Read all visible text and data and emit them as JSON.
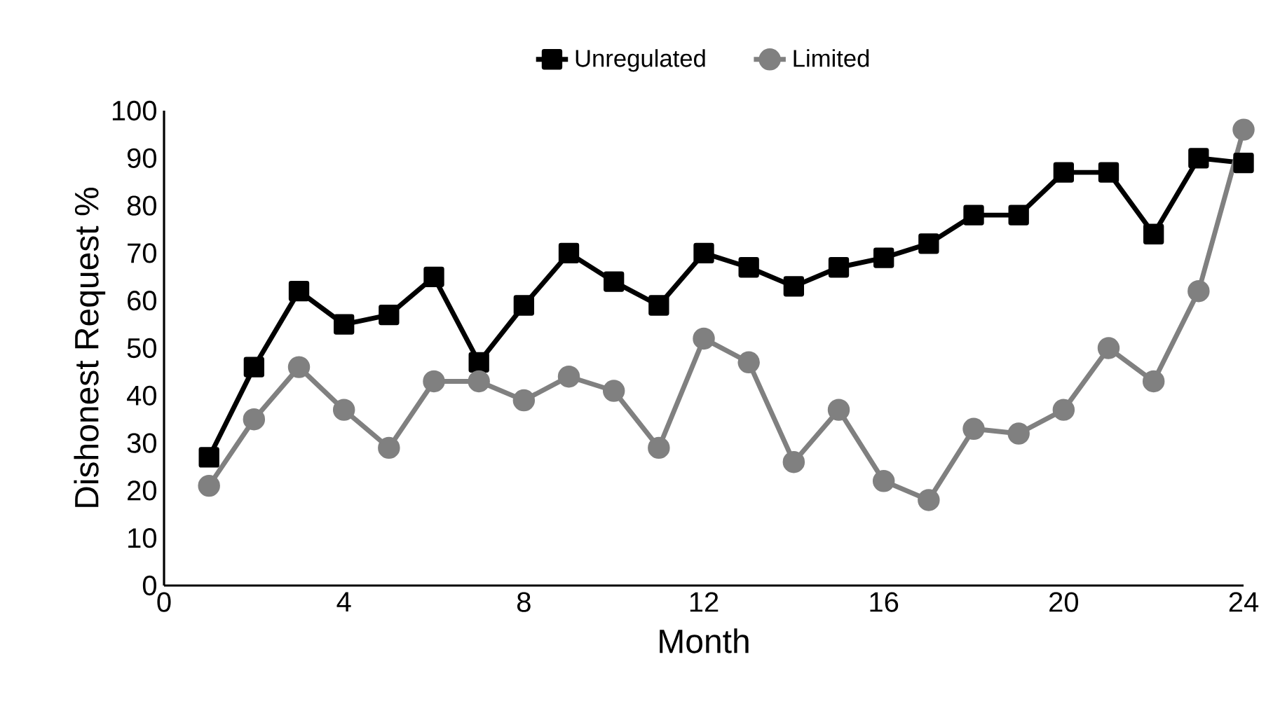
{
  "chart_data": {
    "type": "line",
    "xlabel": "Month",
    "ylabel": "Dishonest Request %",
    "x": [
      1,
      2,
      3,
      4,
      5,
      6,
      7,
      8,
      9,
      10,
      11,
      12,
      13,
      14,
      15,
      16,
      17,
      18,
      19,
      20,
      21,
      22,
      23,
      24
    ],
    "xlim": [
      0,
      24
    ],
    "xticks": [
      0,
      4,
      8,
      12,
      16,
      20,
      24
    ],
    "ylim": [
      0,
      100
    ],
    "yticks": [
      0,
      10,
      20,
      30,
      40,
      50,
      60,
      70,
      80,
      90,
      100
    ],
    "grid": false,
    "legend": "top",
    "line_style": "solid",
    "series": [
      {
        "name": "Unregulated",
        "color": "#000000",
        "marker": "square",
        "values": [
          27,
          46,
          62,
          55,
          57,
          65,
          47,
          59,
          70,
          64,
          59,
          70,
          67,
          63,
          67,
          69,
          72,
          78,
          78,
          87,
          87,
          74,
          90,
          89
        ]
      },
      {
        "name": "Limited",
        "color": "#808080",
        "marker": "circle",
        "values": [
          21,
          35,
          46,
          37,
          29,
          43,
          43,
          39,
          44,
          41,
          29,
          52,
          47,
          26,
          37,
          22,
          18,
          33,
          32,
          37,
          50,
          43,
          62,
          96
        ]
      }
    ]
  }
}
